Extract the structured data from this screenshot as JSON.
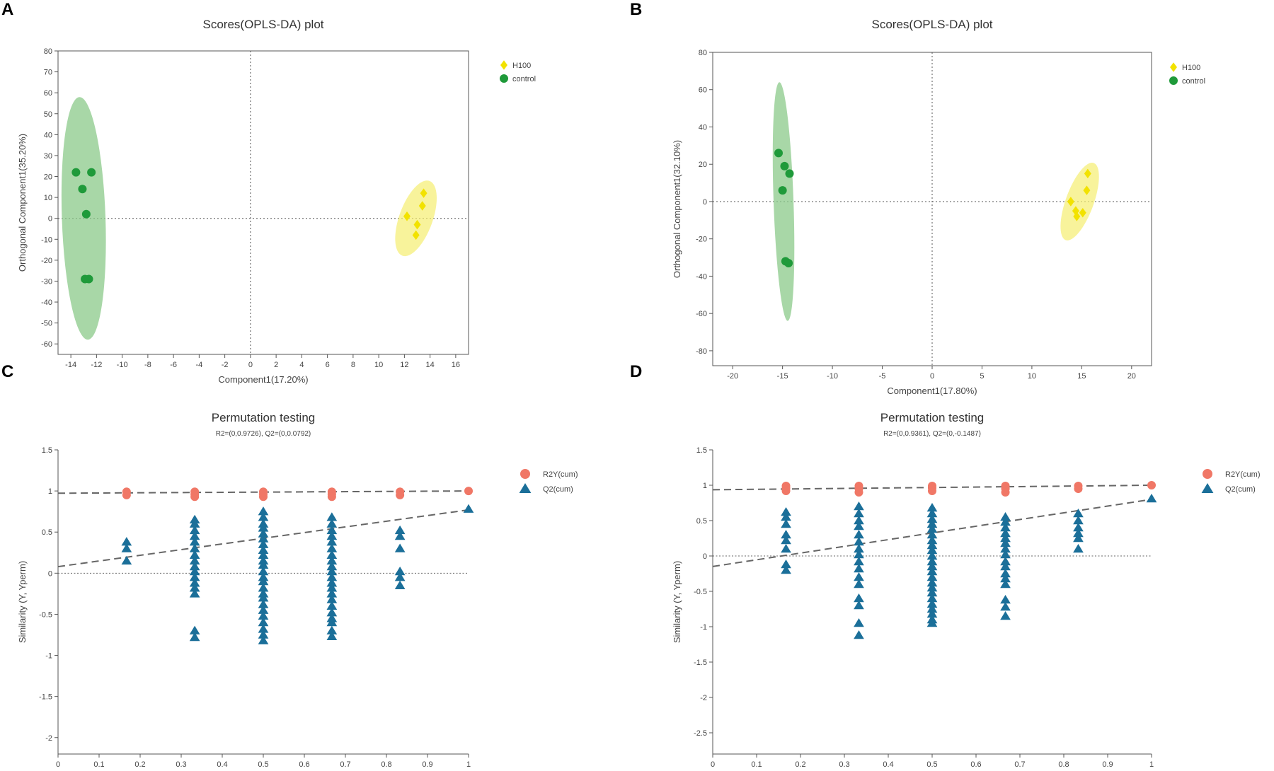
{
  "panels": {
    "A": "A",
    "B": "B",
    "C": "C",
    "D": "D"
  },
  "chart_data": [
    {
      "id": "A",
      "type": "scatter",
      "title": "Scores(OPLS-DA) plot",
      "xlabel": "Component1(17.20%)",
      "ylabel": "Orthogonal Component1(35.20%)",
      "xlim": [
        -15,
        17
      ],
      "ylim": [
        -65,
        80
      ],
      "xticks": [
        -14,
        -12,
        -10,
        -8,
        -6,
        -4,
        -2,
        0,
        2,
        4,
        6,
        8,
        10,
        12,
        14,
        16
      ],
      "yticks": [
        -60,
        -50,
        -40,
        -30,
        -20,
        -10,
        0,
        10,
        20,
        30,
        40,
        50,
        60,
        70,
        80
      ],
      "legend": [
        "H100",
        "control"
      ],
      "series": [
        {
          "name": "H100",
          "color": "#f2e200",
          "marker": "diamond",
          "points": [
            [
              12.2,
              1
            ],
            [
              13.5,
              12
            ],
            [
              13.4,
              6
            ],
            [
              13.0,
              -3
            ],
            [
              12.9,
              -8
            ]
          ],
          "ellipse": {
            "cx": 12.9,
            "cy": 0,
            "rx": 1.3,
            "ry": 19
          }
        },
        {
          "name": "control",
          "color": "#1f9a3a",
          "marker": "circle",
          "points": [
            [
              -13.6,
              22
            ],
            [
              -12.4,
              22
            ],
            [
              -13.1,
              14
            ],
            [
              -12.8,
              2
            ],
            [
              -12.6,
              -29
            ],
            [
              -12.9,
              -29
            ]
          ],
          "ellipse": {
            "cx": -13,
            "cy": 0,
            "rx": 1.7,
            "ry": 58
          }
        }
      ]
    },
    {
      "id": "B",
      "type": "scatter",
      "title": "Scores(OPLS-DA) plot",
      "xlabel": "Component1(17.80%)",
      "ylabel": "Orthogonal Component1(32.10%)",
      "xlim": [
        -22,
        22
      ],
      "ylim": [
        -88,
        80
      ],
      "xticks": [
        -20,
        -15,
        -10,
        -5,
        0,
        5,
        10,
        15,
        20
      ],
      "yticks": [
        -80,
        -60,
        -40,
        -20,
        0,
        20,
        40,
        60,
        80
      ],
      "legend": [
        "H100",
        "control"
      ],
      "series": [
        {
          "name": "H100",
          "color": "#f2e200",
          "marker": "diamond",
          "points": [
            [
              13.9,
              0
            ],
            [
              15.6,
              15
            ],
            [
              15.5,
              6
            ],
            [
              14.4,
              -5
            ],
            [
              15.1,
              -6
            ],
            [
              14.5,
              -8
            ]
          ],
          "ellipse": {
            "cx": 14.8,
            "cy": 0,
            "rx": 1.4,
            "ry": 22
          }
        },
        {
          "name": "control",
          "color": "#1f9a3a",
          "marker": "circle",
          "points": [
            [
              -15.4,
              26
            ],
            [
              -14.8,
              19
            ],
            [
              -14.3,
              15
            ],
            [
              -15.0,
              6
            ],
            [
              -14.7,
              -32
            ],
            [
              -14.4,
              -33
            ]
          ],
          "ellipse": {
            "cx": -14.9,
            "cy": 0,
            "rx": 1,
            "ry": 64
          }
        }
      ]
    },
    {
      "id": "C",
      "type": "scatter",
      "title": "Permutation testing",
      "subtitle": "R2=(0,0.9726), Q2=(0,0.0792)",
      "xlabel": "",
      "ylabel": "Similarity (Y, Yperm)",
      "xlim": [
        0,
        1
      ],
      "ylim": [
        -2.2,
        1.5
      ],
      "xticks": [
        0,
        0.1,
        0.2,
        0.3,
        0.4,
        0.5,
        0.6,
        0.7,
        0.8,
        0.9,
        1
      ],
      "yticks": [
        -2,
        -1.5,
        -1,
        -0.5,
        0,
        0.5,
        1,
        1.5
      ],
      "legend": [
        "R2Y(cum)",
        "Q2(cum)"
      ],
      "r2_line": [
        0,
        0.9726,
        1,
        1
      ],
      "q2_line": [
        0,
        0.0792,
        1,
        0.77
      ],
      "r2_points": [
        [
          0.167,
          0.99
        ],
        [
          0.167,
          0.95
        ],
        [
          0.333,
          0.99
        ],
        [
          0.333,
          0.96
        ],
        [
          0.333,
          0.93
        ],
        [
          0.5,
          0.99
        ],
        [
          0.5,
          0.96
        ],
        [
          0.5,
          0.93
        ],
        [
          0.667,
          0.99
        ],
        [
          0.667,
          0.96
        ],
        [
          0.667,
          0.93
        ],
        [
          0.833,
          0.99
        ],
        [
          0.833,
          0.95
        ],
        [
          1.0,
          1.0
        ]
      ],
      "q2_groups": [
        {
          "x": 0.167,
          "values": [
            0.38,
            0.3,
            0.15
          ]
        },
        {
          "x": 0.333,
          "values": [
            0.65,
            0.6,
            0.52,
            0.45,
            0.38,
            0.3,
            0.22,
            0.15,
            0.08,
            0.02,
            -0.05,
            -0.12,
            -0.18,
            -0.25,
            -0.7,
            -0.78
          ]
        },
        {
          "x": 0.5,
          "values": [
            0.75,
            0.68,
            0.6,
            0.55,
            0.48,
            0.42,
            0.35,
            0.28,
            0.22,
            0.15,
            0.1,
            0.02,
            -0.05,
            -0.1,
            -0.18,
            -0.25,
            -0.3,
            -0.38,
            -0.45,
            -0.52,
            -0.6,
            -0.68,
            -0.75,
            -0.82
          ]
        },
        {
          "x": 0.667,
          "values": [
            0.68,
            0.6,
            0.52,
            0.45,
            0.38,
            0.3,
            0.22,
            0.15,
            0.08,
            0.02,
            -0.05,
            -0.12,
            -0.18,
            -0.25,
            -0.32,
            -0.4,
            -0.48,
            -0.55,
            -0.6,
            -0.7,
            -0.77
          ]
        },
        {
          "x": 0.833,
          "values": [
            0.52,
            0.45,
            0.3,
            0.02,
            -0.05,
            -0.15
          ]
        },
        {
          "x": 1.0,
          "values": [
            0.78
          ]
        }
      ]
    },
    {
      "id": "D",
      "type": "scatter",
      "title": "Permutation testing",
      "subtitle": "R2=(0,0.9361), Q2=(0,-0.1487)",
      "xlabel": "",
      "ylabel": "Similarity (Y, Yperm)",
      "xlim": [
        0,
        1
      ],
      "ylim": [
        -2.8,
        1.5
      ],
      "xticks": [
        0,
        0.1,
        0.2,
        0.3,
        0.4,
        0.5,
        0.6,
        0.7,
        0.8,
        0.9,
        1
      ],
      "yticks": [
        -2.5,
        -2,
        -1.5,
        -1,
        -0.5,
        0,
        0.5,
        1,
        1.5
      ],
      "legend": [
        "R2Y(cum)",
        "Q2(cum)"
      ],
      "r2_line": [
        0,
        0.9361,
        1,
        1
      ],
      "q2_line": [
        0,
        -0.1487,
        1,
        0.8
      ],
      "r2_points": [
        [
          0.167,
          0.99
        ],
        [
          0.167,
          0.96
        ],
        [
          0.167,
          0.92
        ],
        [
          0.333,
          0.99
        ],
        [
          0.333,
          0.95
        ],
        [
          0.333,
          0.9
        ],
        [
          0.5,
          0.99
        ],
        [
          0.5,
          0.96
        ],
        [
          0.5,
          0.92
        ],
        [
          0.667,
          0.99
        ],
        [
          0.667,
          0.95
        ],
        [
          0.667,
          0.9
        ],
        [
          0.833,
          0.99
        ],
        [
          0.833,
          0.95
        ],
        [
          1.0,
          1.0
        ]
      ],
      "q2_groups": [
        {
          "x": 0.167,
          "values": [
            0.62,
            0.55,
            0.45,
            0.3,
            0.22,
            0.1,
            -0.12,
            -0.2
          ]
        },
        {
          "x": 0.333,
          "values": [
            0.7,
            0.6,
            0.5,
            0.42,
            0.3,
            0.2,
            0.1,
            0.02,
            -0.08,
            -0.18,
            -0.3,
            -0.4,
            -0.6,
            -0.7,
            -0.95,
            -1.12
          ]
        },
        {
          "x": 0.5,
          "values": [
            0.68,
            0.6,
            0.52,
            0.45,
            0.38,
            0.3,
            0.22,
            0.15,
            0.08,
            0.0,
            -0.08,
            -0.15,
            -0.22,
            -0.3,
            -0.38,
            -0.45,
            -0.52,
            -0.6,
            -0.68,
            -0.75,
            -0.82,
            -0.9,
            -0.95
          ]
        },
        {
          "x": 0.667,
          "values": [
            0.55,
            0.48,
            0.4,
            0.32,
            0.25,
            0.18,
            0.1,
            0.02,
            -0.08,
            -0.15,
            -0.25,
            -0.32,
            -0.4,
            -0.62,
            -0.72,
            -0.85
          ]
        },
        {
          "x": 0.833,
          "values": [
            0.6,
            0.5,
            0.4,
            0.32,
            0.25,
            0.1
          ]
        },
        {
          "x": 1.0,
          "values": [
            0.81
          ]
        }
      ]
    }
  ]
}
